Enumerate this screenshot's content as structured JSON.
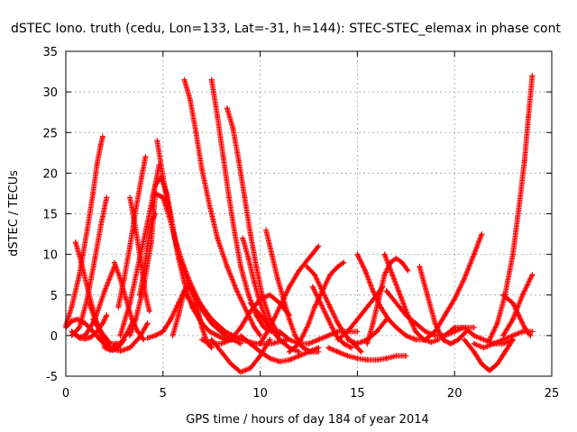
{
  "chart_data": {
    "type": "scatter",
    "title": "dSTEC Iono. truth (cedu, Lon=133, Lat=-31, h=144): STEC-STEC_elemax in phase cont",
    "xlabel": "GPS time / hours of day 184 of year 2014",
    "ylabel": "dSTEC  / TECUs",
    "xlim": [
      0,
      25
    ],
    "ylim": [
      -5,
      35
    ],
    "x_ticks": [
      0,
      5,
      10,
      15,
      20,
      25
    ],
    "y_ticks": [
      -5,
      0,
      5,
      10,
      15,
      20,
      25,
      30,
      35
    ],
    "grid": true,
    "marker": "plus",
    "color": "#ff0000",
    "series": [
      {
        "x": [
          0.0,
          0.3,
          0.6,
          1.0,
          1.4,
          1.8,
          2.3,
          2.8,
          3.3,
          3.8,
          4.2
        ],
        "values": [
          1.0,
          1.8,
          2.0,
          1.5,
          0.5,
          -0.6,
          -1.6,
          -1.9,
          -1.5,
          -0.2,
          1.5
        ]
      },
      {
        "x": [
          0.0,
          0.3,
          0.7,
          1.1,
          1.4,
          1.6,
          1.8,
          1.9
        ],
        "values": [
          1.2,
          3.5,
          7.5,
          13.0,
          17.5,
          21.0,
          23.5,
          24.5
        ]
      },
      {
        "x": [
          0.5,
          0.8,
          1.2,
          1.6,
          2.0,
          2.4,
          2.7,
          3.0
        ],
        "values": [
          11.5,
          9.0,
          5.0,
          1.5,
          -0.8,
          -1.8,
          -1.5,
          -0.5
        ]
      },
      {
        "x": [
          0.3,
          0.7,
          1.1,
          1.5,
          1.8,
          2.1
        ],
        "values": [
          0.0,
          1.0,
          4.5,
          9.5,
          13.5,
          17.0
        ]
      },
      {
        "x": [
          0.3,
          0.7,
          1.0,
          1.5,
          2.0,
          2.5
        ],
        "values": [
          0.5,
          -0.2,
          0.0,
          2.0,
          5.5,
          8.5
        ]
      },
      {
        "x": [
          0.3,
          0.7,
          1.0,
          1.3,
          1.6,
          1.9,
          2.1
        ],
        "values": [
          0.5,
          -0.3,
          -0.4,
          -0.2,
          0.5,
          1.5,
          2.5
        ]
      },
      {
        "x": [
          1.2,
          1.5,
          1.8,
          2.0,
          2.3,
          2.6
        ],
        "values": [
          4.0,
          2.0,
          0.5,
          -1.5,
          -1.8,
          -1.0
        ]
      },
      {
        "x": [
          1.4,
          1.8,
          2.3,
          2.8,
          3.2,
          3.5
        ],
        "values": [
          2.0,
          0.5,
          -1.0,
          -1.0,
          0.5,
          2.0
        ]
      },
      {
        "x": [
          2.5,
          2.8,
          3.1,
          3.4,
          3.7,
          4.0
        ],
        "values": [
          9.0,
          7.0,
          4.5,
          2.0,
          0.5,
          -0.5
        ]
      },
      {
        "x": [
          2.7,
          3.0,
          3.3,
          3.6,
          3.9,
          4.1
        ],
        "values": [
          3.5,
          7.0,
          11.0,
          15.5,
          19.5,
          22.0
        ]
      },
      {
        "x": [
          3.3,
          3.6,
          3.9,
          4.1,
          4.3
        ],
        "values": [
          17.0,
          13.0,
          8.5,
          5.0,
          3.0
        ]
      },
      {
        "x": [
          2.8,
          3.3,
          3.8,
          4.3,
          4.6,
          4.8
        ],
        "values": [
          0.0,
          4.0,
          9.5,
          15.0,
          18.5,
          21.0
        ]
      },
      {
        "x": [
          3.3,
          3.6,
          4.0,
          4.4,
          4.6
        ],
        "values": [
          0.0,
          2.0,
          6.0,
          11.5,
          17.5
        ]
      },
      {
        "x": [
          4.3,
          4.6,
          4.9,
          5.2,
          5.5,
          5.8,
          6.1,
          6.5,
          7.0
        ],
        "values": [
          15.0,
          18.5,
          19.5,
          17.5,
          13.5,
          9.5,
          6.5,
          3.5,
          1.5
        ]
      },
      {
        "x": [
          4.6,
          5.0,
          5.4,
          5.8,
          6.3,
          6.9,
          7.5,
          8.2,
          9.0
        ],
        "values": [
          17.5,
          17.0,
          14.0,
          10.0,
          6.5,
          3.5,
          1.5,
          0.0,
          -1.0
        ]
      },
      {
        "x": [
          4.7,
          5.0,
          5.3,
          5.6,
          6.0,
          6.4,
          6.9,
          7.5,
          8.2,
          9.0,
          9.8,
          10.6,
          11.4
        ],
        "values": [
          24.0,
          19.5,
          15.5,
          12.0,
          9.0,
          6.5,
          4.0,
          2.0,
          0.5,
          -0.5,
          -1.0,
          -1.0,
          -0.5
        ]
      },
      {
        "x": [
          3.8,
          4.0,
          4.2,
          4.4,
          4.6
        ],
        "values": [
          5.0,
          7.5,
          11.0,
          14.0,
          15.0
        ]
      },
      {
        "x": [
          4.2,
          4.6,
          5.0,
          5.4,
          5.8,
          6.2
        ],
        "values": [
          -0.3,
          0.0,
          0.5,
          2.0,
          4.0,
          6.0
        ]
      },
      {
        "x": [
          5.5,
          5.8,
          6.1,
          6.4,
          6.7,
          7.0,
          7.3,
          7.5
        ],
        "values": [
          0.0,
          2.5,
          5.5,
          6.0,
          4.0,
          1.0,
          -1.0,
          -1.5
        ]
      },
      {
        "x": [
          6.1,
          6.4,
          6.7,
          7.0,
          7.4,
          7.8,
          8.3,
          8.8,
          9.3,
          9.7,
          10.0
        ],
        "values": [
          31.5,
          29.0,
          25.0,
          20.5,
          16.0,
          12.0,
          8.5,
          5.5,
          3.0,
          1.0,
          0.0
        ]
      },
      {
        "x": [
          6.2,
          6.6,
          7.0,
          7.4,
          7.8,
          8.2,
          8.6
        ],
        "values": [
          5.0,
          3.5,
          1.5,
          0.5,
          0.0,
          -0.5,
          -0.5
        ]
      },
      {
        "x": [
          7.5,
          7.8,
          8.1,
          8.4,
          8.7,
          9.0,
          9.4,
          9.8,
          10.2,
          10.6
        ],
        "values": [
          31.5,
          27.0,
          22.0,
          17.0,
          12.5,
          8.5,
          5.0,
          2.5,
          1.0,
          0.5
        ]
      },
      {
        "x": [
          8.3,
          8.6,
          8.9,
          9.2,
          9.5,
          9.8,
          10.1,
          10.5,
          11.0
        ],
        "values": [
          28.0,
          25.5,
          21.5,
          17.0,
          12.5,
          8.5,
          5.0,
          2.0,
          0.0
        ]
      },
      {
        "x": [
          9.1,
          9.4,
          9.7,
          10.0,
          10.3,
          10.6
        ],
        "values": [
          12.0,
          9.5,
          6.5,
          4.0,
          2.0,
          0.5
        ]
      },
      {
        "x": [
          7.5,
          8.0,
          8.5,
          9.0,
          9.5,
          10.0,
          10.5
        ],
        "values": [
          -0.5,
          -2.0,
          -3.5,
          -4.5,
          -4.0,
          -2.5,
          -0.5
        ]
      },
      {
        "x": [
          7.0,
          7.5,
          8.0,
          8.5,
          9.0,
          9.5,
          10.0,
          10.5,
          11.0,
          11.5
        ],
        "values": [
          -0.5,
          -1.0,
          -1.0,
          -0.5,
          1.0,
          3.0,
          4.5,
          5.0,
          4.0,
          2.5
        ]
      },
      {
        "x": [
          9.0,
          9.5,
          10.0,
          10.5,
          11.0,
          11.5,
          12.0,
          12.5,
          13.0
        ],
        "values": [
          0.0,
          -1.0,
          -2.0,
          -2.8,
          -3.2,
          -3.0,
          -2.5,
          -2.0,
          -1.5
        ]
      },
      {
        "x": [
          9.5,
          10.0,
          10.5,
          11.0,
          11.5,
          12.0
        ],
        "values": [
          4.0,
          2.5,
          1.0,
          -0.5,
          -1.5,
          -2.0
        ]
      },
      {
        "x": [
          10.0,
          10.5,
          11.0,
          11.5,
          12.0,
          12.5,
          13.0
        ],
        "values": [
          -1.0,
          1.0,
          3.5,
          6.0,
          8.0,
          9.5,
          11.0
        ]
      },
      {
        "x": [
          10.3,
          10.6,
          10.9,
          11.2,
          11.5,
          11.8,
          12.2,
          12.6,
          13.0
        ],
        "values": [
          13.0,
          10.0,
          7.0,
          4.5,
          2.0,
          0.0,
          -1.5,
          -2.0,
          -2.0
        ]
      },
      {
        "x": [
          11.0,
          11.5,
          12.0,
          12.5,
          13.0,
          13.5,
          14.0,
          14.5,
          15.0
        ],
        "values": [
          0.5,
          -0.5,
          -1.0,
          -1.0,
          -0.5,
          0.0,
          0.5,
          0.5,
          0.5
        ]
      },
      {
        "x": [
          11.5,
          12.0,
          12.5,
          12.8,
          13.2,
          13.6,
          14.0,
          14.3
        ],
        "values": [
          -2.0,
          -1.0,
          1.5,
          3.5,
          5.5,
          7.5,
          8.5,
          9.0
        ]
      },
      {
        "x": [
          12.4,
          12.8,
          13.2,
          13.6,
          14.0,
          14.4,
          14.8,
          15.2
        ],
        "values": [
          8.5,
          7.5,
          5.5,
          3.5,
          1.5,
          0.0,
          -1.0,
          -2.0
        ]
      },
      {
        "x": [
          12.7,
          13.1,
          13.5,
          13.9,
          14.3,
          14.7
        ],
        "values": [
          6.0,
          4.0,
          2.0,
          0.0,
          -1.0,
          -1.5
        ]
      },
      {
        "x": [
          13.5,
          14.0,
          14.5,
          15.0,
          15.5,
          16.0,
          16.5,
          17.0,
          17.5
        ],
        "values": [
          -1.5,
          -2.0,
          -2.5,
          -2.8,
          -3.0,
          -3.0,
          -2.8,
          -2.5,
          -2.5
        ]
      },
      {
        "x": [
          14.0,
          14.5,
          15.0,
          15.5,
          16.0,
          16.3
        ],
        "values": [
          -0.5,
          0.5,
          2.0,
          3.5,
          5.0,
          6.0
        ]
      },
      {
        "x": [
          14.5,
          15.0,
          15.5,
          16.0,
          16.5
        ],
        "values": [
          -0.5,
          -1.0,
          -0.5,
          0.5,
          2.0
        ]
      },
      {
        "x": [
          15.0,
          15.4,
          15.8,
          16.2,
          16.6,
          17.0,
          17.5,
          18.0
        ],
        "values": [
          10.0,
          8.0,
          5.5,
          3.5,
          2.0,
          1.0,
          0.0,
          -0.5
        ]
      },
      {
        "x": [
          15.5,
          15.8,
          16.1,
          16.4,
          16.7,
          17.0,
          17.3,
          17.6
        ],
        "values": [
          -1.0,
          1.5,
          4.5,
          7.5,
          9.0,
          9.5,
          9.0,
          8.0
        ]
      },
      {
        "x": [
          16.4,
          16.8,
          17.2,
          17.6,
          18.0,
          18.4,
          18.8,
          19.2
        ],
        "values": [
          10.0,
          7.5,
          5.0,
          2.5,
          0.5,
          -0.5,
          -0.8,
          -0.5
        ]
      },
      {
        "x": [
          16.5,
          17.0,
          17.5,
          18.0,
          18.5,
          19.0,
          19.5,
          20.0,
          20.5,
          21.0
        ],
        "values": [
          5.5,
          4.0,
          2.5,
          1.5,
          0.5,
          0.0,
          0.0,
          0.5,
          1.0,
          1.0
        ]
      },
      {
        "x": [
          18.2,
          18.6,
          19.0,
          19.4,
          19.8,
          20.2,
          20.6
        ],
        "values": [
          8.5,
          5.0,
          1.5,
          -0.5,
          -1.0,
          -0.5,
          0.5
        ]
      },
      {
        "x": [
          18.0,
          18.5,
          19.0,
          19.5,
          20.0,
          20.5,
          21.0,
          21.4
        ],
        "values": [
          -0.5,
          -0.5,
          0.5,
          2.5,
          4.5,
          7.0,
          10.0,
          12.5
        ]
      },
      {
        "x": [
          19.5,
          20.0,
          20.5,
          21.0,
          21.5,
          22.0,
          22.5,
          23.0
        ],
        "values": [
          0.0,
          1.0,
          1.0,
          0.0,
          -0.5,
          -1.0,
          -1.0,
          -0.5
        ]
      },
      {
        "x": [
          20.5,
          21.0,
          21.4,
          21.8,
          22.2,
          22.6,
          23.0
        ],
        "values": [
          -0.5,
          -2.0,
          -3.5,
          -4.3,
          -3.5,
          -2.0,
          -0.5
        ]
      },
      {
        "x": [
          21.0,
          21.5,
          22.0,
          22.5,
          23.0,
          23.5,
          24.0
        ],
        "values": [
          -1.0,
          -1.5,
          -1.0,
          -0.5,
          0.0,
          0.5,
          0.5
        ]
      },
      {
        "x": [
          21.8,
          22.2,
          22.6,
          23.0,
          23.3,
          23.6,
          23.8,
          24.0
        ],
        "values": [
          -0.5,
          1.5,
          5.0,
          10.0,
          15.5,
          21.5,
          27.0,
          32.0
        ]
      },
      {
        "x": [
          22.5,
          23.0,
          23.3,
          23.6,
          23.9
        ],
        "values": [
          5.0,
          4.0,
          2.5,
          1.0,
          0.0
        ]
      },
      {
        "x": [
          22.5,
          23.0,
          23.5,
          24.0
        ],
        "values": [
          0.0,
          2.0,
          5.0,
          7.5
        ]
      }
    ]
  }
}
